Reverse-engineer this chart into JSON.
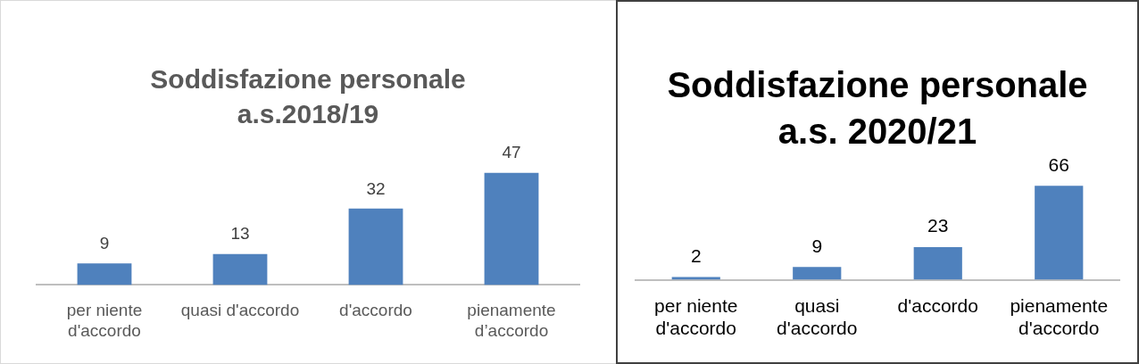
{
  "chart_data": [
    {
      "type": "bar",
      "title": "Soddisfazione personale a.s.2018/19",
      "categories": [
        "per niente d'accordo",
        "quasi d'accordo",
        "d'accordo",
        "pienamente d’accordo"
      ],
      "values": [
        9,
        13,
        32,
        47
      ],
      "color": "#4f81bd",
      "data_labels": true,
      "grid": false,
      "legend": false,
      "tick_labels": "x"
    },
    {
      "type": "bar",
      "title": "Soddisfazione personale a.s. 2020/21",
      "categories": [
        "per niente d'accordo",
        "quasi d'accordo",
        "d'accordo",
        "pienamente d'accordo"
      ],
      "values": [
        2,
        9,
        23,
        66
      ],
      "color": "#4f81bd",
      "data_labels": true,
      "grid": false,
      "legend": false,
      "tick_labels": "x"
    }
  ]
}
